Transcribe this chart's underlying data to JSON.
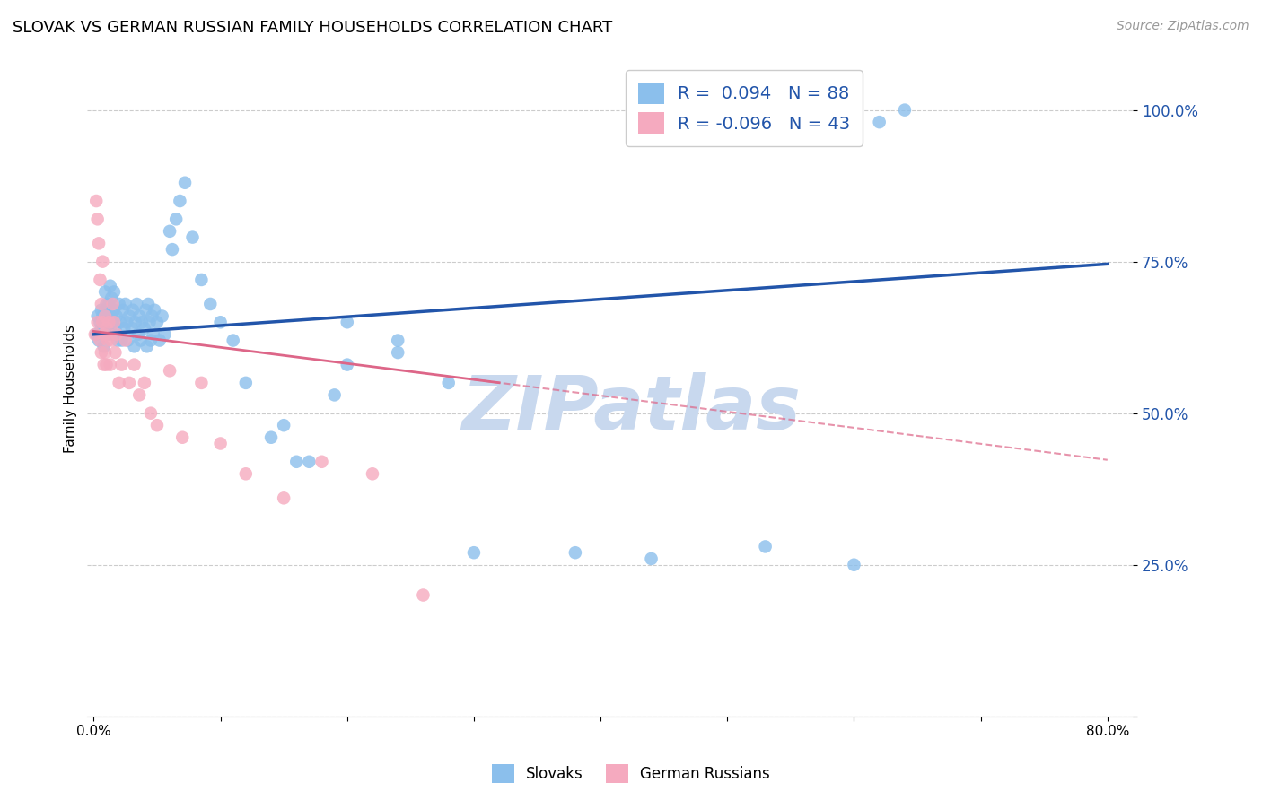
{
  "title": "SLOVAK VS GERMAN RUSSIAN FAMILY HOUSEHOLDS CORRELATION CHART",
  "source": "Source: ZipAtlas.com",
  "ylabel": "Family Households",
  "watermark": "ZIPatlas",
  "legend": {
    "slovak_r": "0.094",
    "slovak_n": "88",
    "german_r": "-0.096",
    "german_n": "43"
  },
  "slovak_color": "#8BBFEC",
  "german_color": "#F5AABF",
  "trend_slovak_color": "#2255AA",
  "trend_german_color": "#DD6688",
  "trend_german_dash_color": "#EEB8CB",
  "background_color": "#FFFFFF",
  "grid_color": "#CCCCCC",
  "Slovak_x": [
    0.002,
    0.003,
    0.004,
    0.005,
    0.006,
    0.006,
    0.007,
    0.007,
    0.008,
    0.008,
    0.009,
    0.009,
    0.01,
    0.01,
    0.011,
    0.011,
    0.012,
    0.012,
    0.013,
    0.013,
    0.014,
    0.014,
    0.015,
    0.015,
    0.016,
    0.016,
    0.017,
    0.018,
    0.019,
    0.02,
    0.021,
    0.022,
    0.023,
    0.024,
    0.025,
    0.026,
    0.027,
    0.028,
    0.03,
    0.031,
    0.032,
    0.033,
    0.034,
    0.035,
    0.036,
    0.037,
    0.038,
    0.04,
    0.041,
    0.042,
    0.043,
    0.044,
    0.045,
    0.046,
    0.047,
    0.048,
    0.05,
    0.052,
    0.054,
    0.056,
    0.06,
    0.062,
    0.065,
    0.068,
    0.072,
    0.078,
    0.085,
    0.092,
    0.1,
    0.11,
    0.12,
    0.14,
    0.16,
    0.2,
    0.24,
    0.3,
    0.38,
    0.44,
    0.53,
    0.6,
    0.62,
    0.64,
    0.2,
    0.24,
    0.19,
    0.28,
    0.15,
    0.17
  ],
  "Slovak_y": [
    0.63,
    0.66,
    0.62,
    0.65,
    0.64,
    0.67,
    0.63,
    0.66,
    0.64,
    0.61,
    0.67,
    0.7,
    0.64,
    0.68,
    0.63,
    0.66,
    0.65,
    0.68,
    0.64,
    0.71,
    0.66,
    0.69,
    0.63,
    0.65,
    0.67,
    0.7,
    0.64,
    0.66,
    0.62,
    0.68,
    0.65,
    0.62,
    0.67,
    0.64,
    0.68,
    0.65,
    0.62,
    0.66,
    0.64,
    0.67,
    0.61,
    0.65,
    0.68,
    0.63,
    0.66,
    0.62,
    0.65,
    0.64,
    0.67,
    0.61,
    0.68,
    0.65,
    0.62,
    0.66,
    0.63,
    0.67,
    0.65,
    0.62,
    0.66,
    0.63,
    0.8,
    0.77,
    0.82,
    0.85,
    0.88,
    0.79,
    0.72,
    0.68,
    0.65,
    0.62,
    0.55,
    0.46,
    0.42,
    0.65,
    0.62,
    0.27,
    0.27,
    0.26,
    0.28,
    0.25,
    0.98,
    1.0,
    0.58,
    0.6,
    0.53,
    0.55,
    0.48,
    0.42
  ],
  "German_x": [
    0.001,
    0.002,
    0.003,
    0.003,
    0.004,
    0.005,
    0.005,
    0.006,
    0.006,
    0.007,
    0.007,
    0.008,
    0.008,
    0.009,
    0.009,
    0.01,
    0.01,
    0.011,
    0.012,
    0.013,
    0.014,
    0.015,
    0.016,
    0.017,
    0.018,
    0.02,
    0.022,
    0.025,
    0.028,
    0.032,
    0.036,
    0.04,
    0.045,
    0.05,
    0.06,
    0.07,
    0.085,
    0.1,
    0.12,
    0.15,
    0.18,
    0.22,
    0.26
  ],
  "German_y": [
    0.63,
    0.85,
    0.82,
    0.65,
    0.78,
    0.72,
    0.62,
    0.68,
    0.6,
    0.65,
    0.75,
    0.63,
    0.58,
    0.66,
    0.6,
    0.64,
    0.58,
    0.62,
    0.65,
    0.58,
    0.62,
    0.68,
    0.65,
    0.6,
    0.63,
    0.55,
    0.58,
    0.62,
    0.55,
    0.58,
    0.53,
    0.55,
    0.5,
    0.48,
    0.57,
    0.46,
    0.55,
    0.45,
    0.4,
    0.36,
    0.42,
    0.4,
    0.2
  ],
  "ylim": [
    0.0,
    1.08
  ],
  "xlim": [
    -0.005,
    0.82
  ],
  "yticks": [
    0.0,
    0.25,
    0.5,
    0.75,
    1.0
  ],
  "ytick_labels": [
    "",
    "25.0%",
    "50.0%",
    "75.0%",
    "100.0%"
  ],
  "title_fontsize": 13,
  "axis_label_fontsize": 11,
  "legend_fontsize": 14,
  "source_fontsize": 10,
  "watermark_color": "#C8D8EE",
  "watermark_fontsize": 60,
  "trend_slovak_intercept": 0.63,
  "trend_slovak_slope": 0.145,
  "trend_german_intercept": 0.635,
  "trend_german_slope": -0.265,
  "trend_german_solid_end": 0.32,
  "trend_german_dash_start": 0.3,
  "trend_german_dash_end": 0.8
}
